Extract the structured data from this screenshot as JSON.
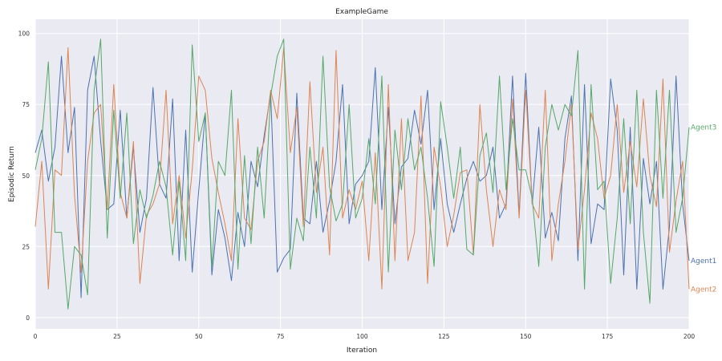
{
  "chart_data": {
    "type": "line",
    "title": "ExampleGame",
    "xlabel": "Iteration",
    "ylabel": "Episodic Return",
    "xlim": [
      0,
      200
    ],
    "ylim": [
      -4,
      105
    ],
    "xticks": [
      0,
      25,
      50,
      75,
      100,
      125,
      150,
      175,
      200
    ],
    "yticks": [
      0,
      25,
      50,
      75,
      100
    ],
    "grid": true,
    "legend": "end-of-line labels",
    "background": "#eaeaf2",
    "series": [
      {
        "name": "Agent1",
        "color": "#4c72b0",
        "x": [
          0,
          2,
          4,
          6,
          8,
          10,
          12,
          14,
          16,
          18,
          20,
          22,
          24,
          26,
          28,
          30,
          32,
          34,
          36,
          38,
          40,
          42,
          44,
          46,
          48,
          50,
          52,
          54,
          56,
          58,
          60,
          62,
          64,
          66,
          68,
          70,
          72,
          74,
          76,
          78,
          80,
          82,
          84,
          86,
          88,
          90,
          92,
          94,
          96,
          98,
          100,
          102,
          104,
          106,
          108,
          110,
          112,
          114,
          116,
          118,
          120,
          122,
          124,
          126,
          128,
          130,
          132,
          134,
          136,
          138,
          140,
          142,
          144,
          146,
          148,
          150,
          152,
          154,
          156,
          158,
          160,
          162,
          164,
          166,
          168,
          170,
          172,
          174,
          176,
          178,
          180,
          182,
          184,
          186,
          188,
          190,
          192,
          194,
          196,
          198,
          200
        ],
        "values": [
          58,
          66,
          48,
          60,
          92,
          58,
          74,
          7,
          80,
          92,
          62,
          38,
          40,
          73,
          35,
          60,
          30,
          42,
          81,
          47,
          42,
          77,
          20,
          66,
          16,
          45,
          72,
          15,
          38,
          28,
          13,
          37,
          25,
          55,
          46,
          64,
          79,
          16,
          21,
          24,
          79,
          35,
          33,
          55,
          30,
          41,
          55,
          82,
          33,
          47,
          50,
          55,
          88,
          38,
          74,
          33,
          53,
          56,
          73,
          61,
          80,
          38,
          63,
          40,
          30,
          40,
          49,
          55,
          48,
          50,
          60,
          35,
          40,
          85,
          36,
          86,
          40,
          67,
          28,
          37,
          27,
          63,
          78,
          20,
          82,
          26,
          40,
          38,
          84,
          66,
          15,
          67,
          10,
          56,
          40,
          55,
          10,
          32,
          85,
          40,
          20
        ],
        "end_label": "Agent1"
      },
      {
        "name": "Agent2",
        "color": "#dd8452",
        "x": [
          0,
          2,
          4,
          6,
          8,
          10,
          12,
          14,
          16,
          18,
          20,
          22,
          24,
          26,
          28,
          30,
          32,
          34,
          36,
          38,
          40,
          42,
          44,
          46,
          48,
          50,
          52,
          54,
          56,
          58,
          60,
          62,
          64,
          66,
          68,
          70,
          72,
          74,
          76,
          78,
          80,
          82,
          84,
          86,
          88,
          90,
          92,
          94,
          96,
          98,
          100,
          102,
          104,
          106,
          108,
          110,
          112,
          114,
          116,
          118,
          120,
          122,
          124,
          126,
          128,
          130,
          132,
          134,
          136,
          138,
          140,
          142,
          144,
          146,
          148,
          150,
          152,
          154,
          156,
          158,
          160,
          162,
          164,
          166,
          168,
          170,
          172,
          174,
          176,
          178,
          180,
          182,
          184,
          186,
          188,
          190,
          192,
          194,
          196,
          198,
          200
        ],
        "values": [
          32,
          55,
          10,
          52,
          50,
          95,
          43,
          16,
          55,
          72,
          75,
          38,
          82,
          44,
          35,
          62,
          12,
          36,
          40,
          47,
          80,
          33,
          50,
          28,
          52,
          85,
          80,
          56,
          44,
          33,
          20,
          70,
          35,
          31,
          55,
          62,
          80,
          70,
          95,
          58,
          74,
          32,
          83,
          44,
          60,
          22,
          94,
          35,
          45,
          38,
          48,
          20,
          58,
          10,
          82,
          20,
          70,
          20,
          30,
          78,
          12,
          60,
          46,
          25,
          36,
          51,
          52,
          22,
          75,
          45,
          25,
          45,
          38,
          77,
          35,
          80,
          40,
          35,
          80,
          20,
          40,
          55,
          75,
          24,
          45,
          72,
          63,
          42,
          50,
          75,
          44,
          62,
          46,
          77,
          50,
          39,
          84,
          23,
          41,
          55,
          10
        ],
        "end_label": "Agent2"
      },
      {
        "name": "Agent3",
        "color": "#55a868",
        "x": [
          0,
          2,
          4,
          6,
          8,
          10,
          12,
          14,
          16,
          18,
          20,
          22,
          24,
          26,
          28,
          30,
          32,
          34,
          36,
          38,
          40,
          42,
          44,
          46,
          48,
          50,
          52,
          54,
          56,
          58,
          60,
          62,
          64,
          66,
          68,
          70,
          72,
          74,
          76,
          78,
          80,
          82,
          84,
          86,
          88,
          90,
          92,
          94,
          96,
          98,
          100,
          102,
          104,
          106,
          108,
          110,
          112,
          114,
          116,
          118,
          120,
          122,
          124,
          126,
          128,
          130,
          132,
          134,
          136,
          138,
          140,
          142,
          144,
          146,
          148,
          150,
          152,
          154,
          156,
          158,
          160,
          162,
          164,
          166,
          168,
          170,
          172,
          174,
          176,
          178,
          180,
          182,
          184,
          186,
          188,
          190,
          192,
          194,
          196,
          198,
          200
        ],
        "values": [
          52,
          63,
          90,
          30,
          30,
          3,
          25,
          22,
          8,
          80,
          98,
          28,
          73,
          42,
          72,
          26,
          45,
          35,
          43,
          55,
          46,
          22,
          48,
          20,
          96,
          62,
          72,
          18,
          55,
          50,
          80,
          17,
          57,
          26,
          60,
          35,
          78,
          92,
          98,
          17,
          35,
          27,
          60,
          35,
          92,
          46,
          34,
          40,
          75,
          35,
          42,
          63,
          40,
          85,
          16,
          66,
          45,
          70,
          52,
          60,
          42,
          18,
          76,
          60,
          42,
          60,
          24,
          22,
          57,
          65,
          44,
          85,
          45,
          70,
          52,
          52,
          42,
          18,
          60,
          75,
          66,
          75,
          71,
          94,
          10,
          82,
          45,
          48,
          12,
          35,
          70,
          33,
          80,
          30,
          5,
          80,
          42,
          80,
          30,
          42,
          67
        ],
        "end_label": "Agent3"
      }
    ]
  }
}
